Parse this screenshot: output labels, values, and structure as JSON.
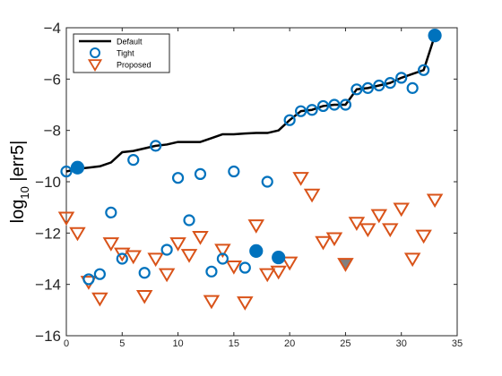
{
  "chart_data": {
    "type": "scatter",
    "title": "",
    "xlabel": "",
    "ylabel": "log10 |err5|",
    "xlim": [
      0,
      35
    ],
    "ylim": [
      -16,
      -4
    ],
    "xticks": [
      0,
      5,
      10,
      15,
      20,
      25,
      30,
      35
    ],
    "yticks": [
      -16,
      -14,
      -12,
      -10,
      -8,
      -6,
      -4
    ],
    "grid": false,
    "legend_position": "top-left",
    "series": [
      {
        "name": "Default",
        "style": "line",
        "color": "#000000",
        "x": [
          0,
          1,
          2,
          3,
          4,
          5,
          6,
          7,
          8,
          9,
          10,
          11,
          12,
          13,
          14,
          15,
          16,
          17,
          18,
          19,
          20,
          21,
          22,
          23,
          24,
          25,
          26,
          27,
          28,
          29,
          30,
          31,
          32,
          33
        ],
        "y": [
          -9.6,
          -9.5,
          -9.45,
          -9.4,
          -9.25,
          -8.85,
          -8.8,
          -8.7,
          -8.6,
          -8.55,
          -8.45,
          -8.45,
          -8.45,
          -8.3,
          -8.15,
          -8.15,
          -8.12,
          -8.1,
          -8.1,
          -8.0,
          -7.6,
          -7.25,
          -7.2,
          -7.05,
          -7.0,
          -7.0,
          -6.4,
          -6.35,
          -6.25,
          -6.15,
          -5.95,
          -5.8,
          -5.65,
          -4.3
        ]
      },
      {
        "name": "Tight",
        "style": "circle",
        "color": "#0072BD",
        "x": [
          0,
          1,
          2,
          3,
          4,
          5,
          6,
          7,
          8,
          9,
          10,
          11,
          12,
          13,
          14,
          15,
          16,
          17,
          18,
          19,
          20,
          21,
          22,
          23,
          24,
          25,
          26,
          27,
          28,
          29,
          30,
          31,
          32,
          33
        ],
        "y": [
          -9.6,
          -9.45,
          -13.8,
          -13.6,
          -11.2,
          -13.0,
          -9.15,
          -13.55,
          -8.6,
          -12.65,
          -9.85,
          -11.5,
          -9.7,
          -13.5,
          -13.0,
          -9.6,
          -13.35,
          -12.7,
          -10.0,
          -12.95,
          -7.6,
          -7.25,
          -7.2,
          -7.05,
          -7.0,
          -7.0,
          -6.4,
          -6.35,
          -6.25,
          -6.15,
          -5.95,
          -6.35,
          -5.65,
          -4.3
        ],
        "filled": [
          1,
          17,
          19,
          33
        ]
      },
      {
        "name": "Proposed",
        "style": "triangle-down",
        "color": "#D95319",
        "x": [
          0,
          1,
          2,
          3,
          4,
          5,
          6,
          7,
          8,
          9,
          10,
          11,
          12,
          13,
          14,
          15,
          16,
          17,
          18,
          19,
          20,
          21,
          22,
          23,
          24,
          25,
          26,
          27,
          28,
          29,
          30,
          31,
          32,
          33
        ],
        "y": [
          -11.4,
          -12.0,
          -13.9,
          -14.55,
          -12.4,
          -12.8,
          -12.9,
          -14.45,
          -13.0,
          -13.6,
          -12.4,
          -12.85,
          -12.15,
          -14.65,
          -12.65,
          -13.3,
          -14.7,
          -11.7,
          -13.6,
          -13.5,
          -13.15,
          -9.85,
          -10.5,
          -12.35,
          -12.2,
          -13.2,
          -11.6,
          -11.85,
          -11.3,
          -11.85,
          -11.05,
          -13.0,
          -12.1,
          -10.7
        ],
        "gray_fill": [
          25
        ]
      }
    ]
  }
}
